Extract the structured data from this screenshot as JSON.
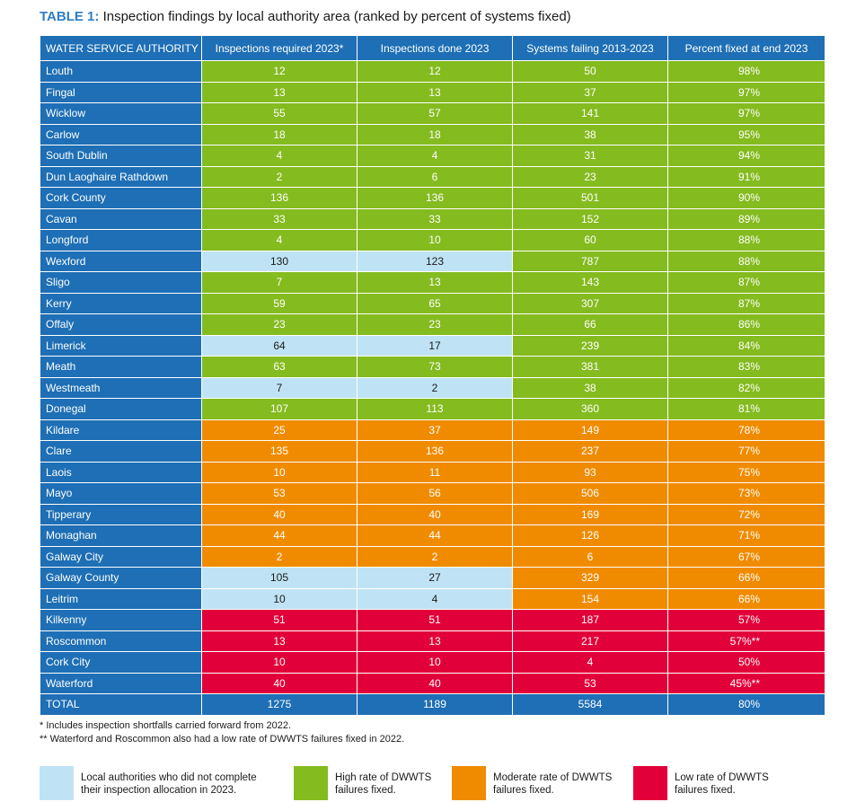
{
  "title": {
    "prefix": "TABLE 1:",
    "text": "Inspection findings by local authority area (ranked by percent of systems fixed)"
  },
  "colors": {
    "header": "#1e6fb5",
    "high": "#84bb1f",
    "moderate": "#f08b00",
    "low": "#e2003a",
    "incomplete": "#bfe3f5"
  },
  "columns": [
    "WATER SERVICE AUTHORITY",
    "Inspections required 2023*",
    "Inspections done 2023",
    "Systems failing 2013-2023",
    "Percent fixed at end 2023"
  ],
  "rows": [
    {
      "authority": "Louth",
      "required": "12",
      "done": "12",
      "failing": "50",
      "pct": "98%",
      "rate": "high",
      "incomplete": false
    },
    {
      "authority": "Fingal",
      "required": "13",
      "done": "13",
      "failing": "37",
      "pct": "97%",
      "rate": "high",
      "incomplete": false
    },
    {
      "authority": "Wicklow",
      "required": "55",
      "done": "57",
      "failing": "141",
      "pct": "97%",
      "rate": "high",
      "incomplete": false
    },
    {
      "authority": "Carlow",
      "required": "18",
      "done": "18",
      "failing": "38",
      "pct": "95%",
      "rate": "high",
      "incomplete": false
    },
    {
      "authority": "South Dublin",
      "required": "4",
      "done": "4",
      "failing": "31",
      "pct": "94%",
      "rate": "high",
      "incomplete": false
    },
    {
      "authority": "Dun Laoghaire Rathdown",
      "required": "2",
      "done": "6",
      "failing": "23",
      "pct": "91%",
      "rate": "high",
      "incomplete": false
    },
    {
      "authority": "Cork County",
      "required": "136",
      "done": "136",
      "failing": "501",
      "pct": "90%",
      "rate": "high",
      "incomplete": false
    },
    {
      "authority": "Cavan",
      "required": "33",
      "done": "33",
      "failing": "152",
      "pct": "89%",
      "rate": "high",
      "incomplete": false
    },
    {
      "authority": "Longford",
      "required": "4",
      "done": "10",
      "failing": "60",
      "pct": "88%",
      "rate": "high",
      "incomplete": false
    },
    {
      "authority": "Wexford",
      "required": "130",
      "done": "123",
      "failing": "787",
      "pct": "88%",
      "rate": "high",
      "incomplete": true
    },
    {
      "authority": "Sligo",
      "required": "7",
      "done": "13",
      "failing": "143",
      "pct": "87%",
      "rate": "high",
      "incomplete": false
    },
    {
      "authority": "Kerry",
      "required": "59",
      "done": "65",
      "failing": "307",
      "pct": "87%",
      "rate": "high",
      "incomplete": false
    },
    {
      "authority": "Offaly",
      "required": "23",
      "done": "23",
      "failing": "66",
      "pct": "86%",
      "rate": "high",
      "incomplete": false
    },
    {
      "authority": "Limerick",
      "required": "64",
      "done": "17",
      "failing": "239",
      "pct": "84%",
      "rate": "high",
      "incomplete": true
    },
    {
      "authority": "Meath",
      "required": "63",
      "done": "73",
      "failing": "381",
      "pct": "83%",
      "rate": "high",
      "incomplete": false
    },
    {
      "authority": "Westmeath",
      "required": "7",
      "done": "2",
      "failing": "38",
      "pct": "82%",
      "rate": "high",
      "incomplete": true
    },
    {
      "authority": "Donegal",
      "required": "107",
      "done": "113",
      "failing": "360",
      "pct": "81%",
      "rate": "high",
      "incomplete": false
    },
    {
      "authority": "Kildare",
      "required": "25",
      "done": "37",
      "failing": "149",
      "pct": "78%",
      "rate": "moderate",
      "incomplete": false
    },
    {
      "authority": "Clare",
      "required": "135",
      "done": "136",
      "failing": "237",
      "pct": "77%",
      "rate": "moderate",
      "incomplete": false
    },
    {
      "authority": "Laois",
      "required": "10",
      "done": "11",
      "failing": "93",
      "pct": "75%",
      "rate": "moderate",
      "incomplete": false
    },
    {
      "authority": "Mayo",
      "required": "53",
      "done": "56",
      "failing": "506",
      "pct": "73%",
      "rate": "moderate",
      "incomplete": false
    },
    {
      "authority": "Tipperary",
      "required": "40",
      "done": "40",
      "failing": "169",
      "pct": "72%",
      "rate": "moderate",
      "incomplete": false
    },
    {
      "authority": "Monaghan",
      "required": "44",
      "done": "44",
      "failing": "126",
      "pct": "71%",
      "rate": "moderate",
      "incomplete": false
    },
    {
      "authority": "Galway City",
      "required": "2",
      "done": "2",
      "failing": "6",
      "pct": "67%",
      "rate": "moderate",
      "incomplete": false
    },
    {
      "authority": "Galway County",
      "required": "105",
      "done": "27",
      "failing": "329",
      "pct": "66%",
      "rate": "moderate",
      "incomplete": true
    },
    {
      "authority": "Leitrim",
      "required": "10",
      "done": "4",
      "failing": "154",
      "pct": "66%",
      "rate": "moderate",
      "incomplete": true
    },
    {
      "authority": "Kilkenny",
      "required": "51",
      "done": "51",
      "failing": "187",
      "pct": "57%",
      "rate": "low",
      "incomplete": false
    },
    {
      "authority": "Roscommon",
      "required": "13",
      "done": "13",
      "failing": "217",
      "pct": "57%**",
      "rate": "low",
      "incomplete": false
    },
    {
      "authority": "Cork City",
      "required": "10",
      "done": "10",
      "failing": "4",
      "pct": "50%",
      "rate": "low",
      "incomplete": false
    },
    {
      "authority": "Waterford",
      "required": "40",
      "done": "40",
      "failing": "53",
      "pct": "45%**",
      "rate": "low",
      "incomplete": false
    }
  ],
  "total": {
    "authority": "TOTAL",
    "required": "1275",
    "done": "1189",
    "failing": "5584",
    "pct": "80%"
  },
  "notes": [
    "* Includes inspection shortfalls carried forward from 2022.",
    "** Waterford and Roscommon also had a low rate of DWWTS failures fixed in 2022."
  ],
  "legend": [
    {
      "key": "incomplete",
      "line1": "Local authorities who did not complete",
      "line2": "their inspection allocation in 2023."
    },
    {
      "key": "high",
      "line1": "High rate of DWWTS",
      "line2": "failures fixed."
    },
    {
      "key": "moderate",
      "line1": "Moderate rate of DWWTS",
      "line2": "failures fixed."
    },
    {
      "key": "low",
      "line1": "Low rate of DWWTS",
      "line2": "failures fixed."
    }
  ]
}
